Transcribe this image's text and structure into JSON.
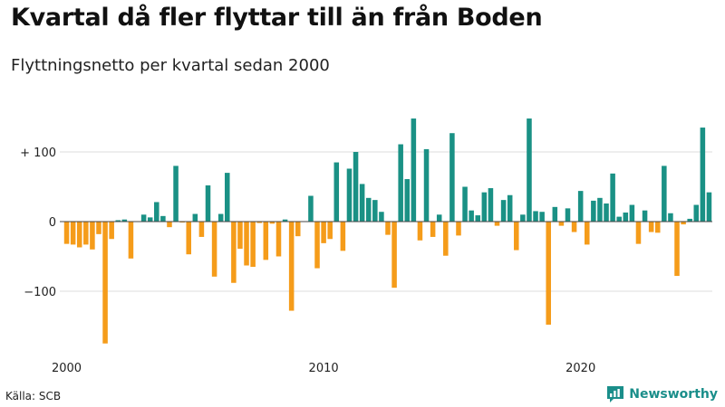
{
  "header": {
    "title": "Kvartal då fler flyttar till än från Boden",
    "subtitle": "Flyttningsnetto per kvartal sedan 2000"
  },
  "footer": {
    "source": "Källa: SCB",
    "brand": "Newsworthy",
    "brand_icon": "newsworthy-logo-icon"
  },
  "chart_data": {
    "type": "bar",
    "x_start": "2000Q1",
    "x_tick_labels": [
      "2000",
      "2010",
      "2020"
    ],
    "y_tick_labels": [
      "+ 100",
      "0",
      "−100"
    ],
    "y_ticks": [
      100,
      0,
      -100
    ],
    "ylim": [
      -185,
      150
    ],
    "grid": true,
    "colors": {
      "positive": "#1a9185",
      "negative": "#f59c1a",
      "grid": "#dddddd",
      "zero": "#444444"
    },
    "values": [
      -32,
      -33,
      -37,
      -33,
      -40,
      -18,
      -175,
      -25,
      2,
      3,
      -53,
      0,
      10,
      6,
      28,
      8,
      -8,
      80,
      -1,
      -47,
      11,
      -22,
      52,
      -79,
      11,
      70,
      -88,
      -39,
      -63,
      -65,
      -2,
      -55,
      -3,
      -50,
      3,
      -128,
      -21,
      0,
      37,
      -67,
      -31,
      -25,
      85,
      -42,
      76,
      100,
      54,
      34,
      31,
      14,
      -19,
      -95,
      111,
      61,
      148,
      -27,
      104,
      -22,
      10,
      -49,
      127,
      -20,
      50,
      16,
      9,
      42,
      48,
      -6,
      31,
      38,
      -41,
      10,
      148,
      15,
      14,
      -148,
      21,
      -6,
      19,
      -15,
      44,
      -33,
      30,
      34,
      26,
      69,
      7,
      13,
      24,
      -32,
      16,
      -15,
      -16,
      80,
      12,
      -78,
      -4,
      4,
      24,
      135,
      42
    ]
  }
}
